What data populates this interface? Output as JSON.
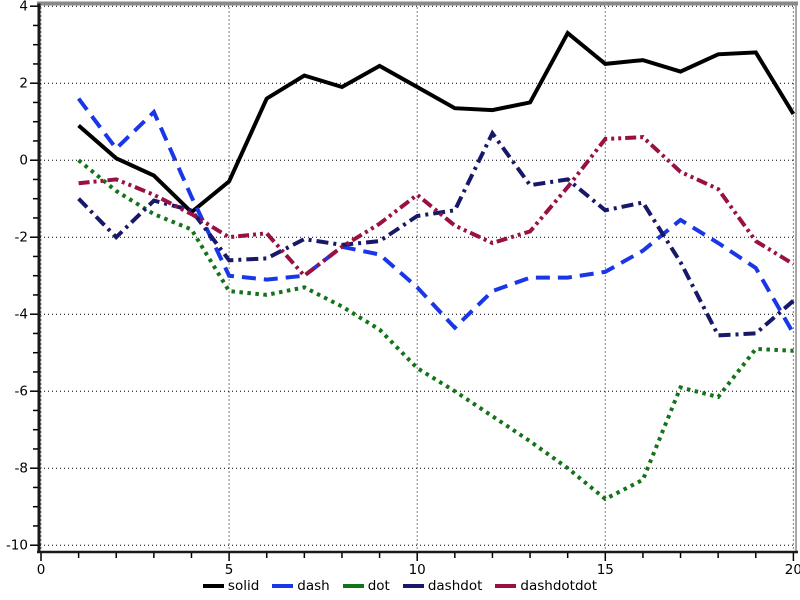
{
  "chart_data": {
    "type": "line",
    "title": "",
    "xlabel": "",
    "ylabel": "",
    "xlim": [
      0,
      20
    ],
    "ylim": [
      -10,
      4
    ],
    "grid": "dotted",
    "legend_position": "bottom-center",
    "x_tick_labels": [
      "0",
      "5",
      "10",
      "15",
      "20"
    ],
    "x_tick_values": [
      0,
      5,
      10,
      15,
      20
    ],
    "x_minor_step": 1,
    "y_tick_labels": [
      "4",
      "2",
      "0",
      "-2",
      "-4",
      "-6",
      "-8",
      "-10"
    ],
    "y_tick_values": [
      4,
      2,
      0,
      -2,
      -4,
      -6,
      -8,
      -10
    ],
    "y_minor_step": 0.5,
    "x": [
      1,
      2,
      3,
      4,
      5,
      6,
      7,
      8,
      9,
      10,
      11,
      12,
      13,
      14,
      15,
      16,
      17,
      18,
      19,
      20
    ],
    "series": [
      {
        "name": "solid",
        "style": "solid",
        "color": "#000000",
        "values": [
          0.9,
          0.05,
          -0.4,
          -1.35,
          -0.55,
          1.6,
          2.2,
          1.9,
          2.45,
          1.9,
          1.35,
          1.3,
          1.5,
          3.3,
          2.5,
          2.6,
          2.3,
          2.75,
          2.8,
          1.2
        ]
      },
      {
        "name": "dash",
        "style": "dash",
        "color": "#1937e6",
        "values": [
          1.6,
          0.3,
          1.25,
          -0.95,
          -3.0,
          -3.1,
          -3.0,
          -2.25,
          -2.45,
          -3.3,
          -4.35,
          -3.4,
          -3.05,
          -3.05,
          -2.9,
          -2.35,
          -1.55,
          -2.15,
          -2.8,
          -4.5
        ]
      },
      {
        "name": "dot",
        "style": "dot",
        "color": "#147319",
        "values": [
          0.0,
          -0.8,
          -1.4,
          -1.8,
          -3.4,
          -3.5,
          -3.3,
          -3.8,
          -4.4,
          -5.4,
          -6.0,
          -6.65,
          -7.3,
          -8.0,
          -8.8,
          -8.3,
          -5.9,
          -6.15,
          -4.9,
          -4.95
        ]
      },
      {
        "name": "dashdot",
        "style": "dashdot",
        "color": "#181868",
        "values": [
          -1.0,
          -2.0,
          -1.05,
          -1.3,
          -2.6,
          -2.55,
          -2.05,
          -2.2,
          -2.1,
          -1.45,
          -1.3,
          0.7,
          -0.65,
          -0.5,
          -1.3,
          -1.1,
          -2.65,
          -4.55,
          -4.5,
          -3.65
        ]
      },
      {
        "name": "dashdotdot",
        "style": "dashdotdot",
        "color": "#991144",
        "values": [
          -0.6,
          -0.5,
          -0.9,
          -1.4,
          -2.0,
          -1.9,
          -3.0,
          -2.25,
          -1.65,
          -0.9,
          -1.7,
          -2.15,
          -1.85,
          -0.7,
          0.55,
          0.6,
          -0.3,
          -0.75,
          -2.1,
          -2.7
        ]
      }
    ],
    "legend": [
      "solid",
      "dash",
      "dot",
      "dashdot",
      "dashdotdot"
    ],
    "frame_colors": {
      "axis": "#1a1a1a",
      "frame_gray": "#8a8a8a",
      "grid": "#000000"
    }
  }
}
